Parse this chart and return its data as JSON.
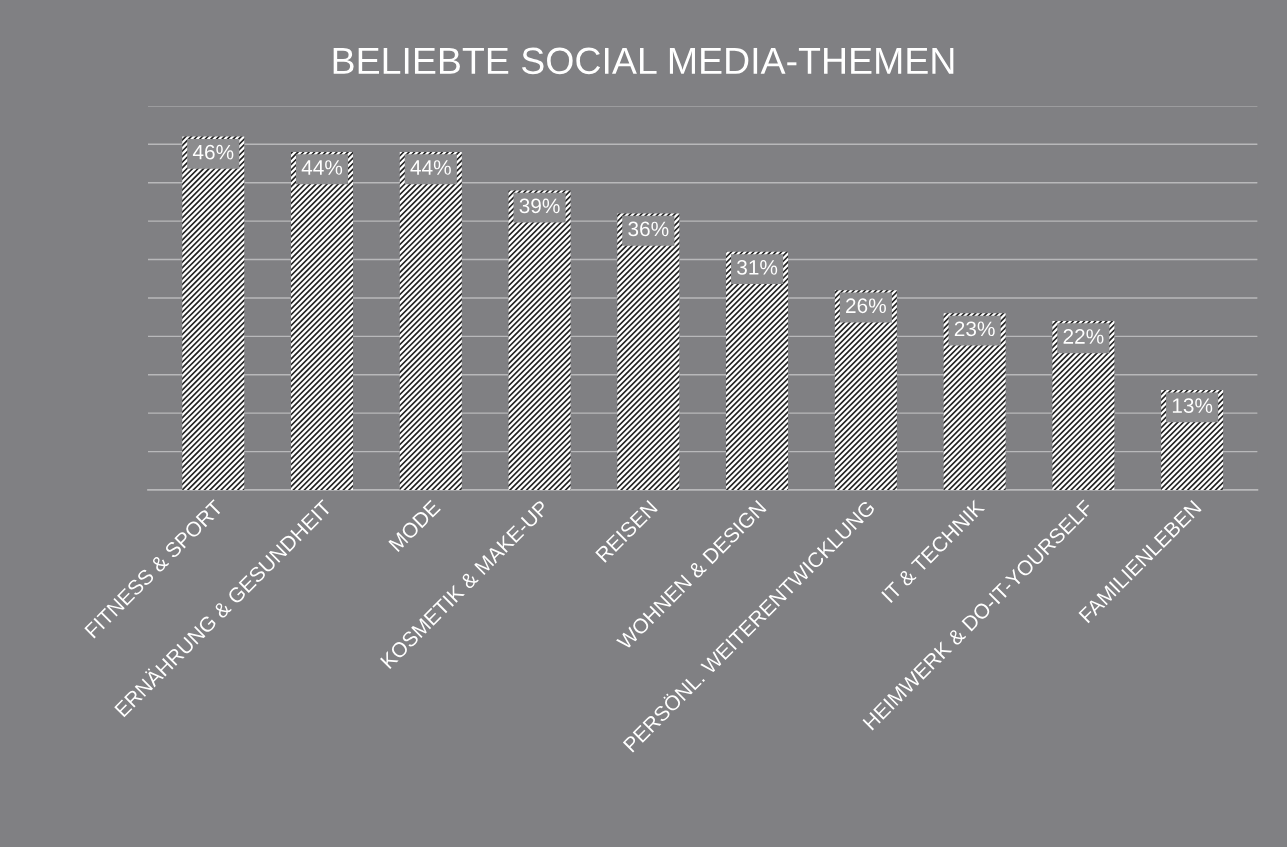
{
  "chart_data": {
    "type": "bar",
    "title": "BELIEBTE SOCIAL MEDIA-THEMEN",
    "categories": [
      "FITNESS & SPORT",
      "ERNÄHRUNG & GESUNDHEIT",
      "MODE",
      "KOSMETIK & MAKE-UP",
      "REISEN",
      "WOHNEN & DESIGN",
      "PERSÖNL. WEITERENTWICKLUNG",
      "IT & TECHNIK",
      "HEIMWERK & DO-IT-YOURSELF",
      "FAMILIENLEBEN"
    ],
    "values": [
      46,
      44,
      44,
      39,
      36,
      31,
      26,
      23,
      22,
      13
    ],
    "value_labels": [
      "46%",
      "44%",
      "44%",
      "39%",
      "36%",
      "31%",
      "26%",
      "23%",
      "22%",
      "13%"
    ],
    "color": "#ffffff",
    "ylim": [
      0,
      50
    ],
    "yticks": [
      {
        "value": 0,
        "label": null
      },
      {
        "value": 5,
        "label": null
      },
      {
        "value": 10,
        "label": null
      },
      {
        "value": 15,
        "label": null
      },
      {
        "value": 20,
        "label": null
      },
      {
        "value": 25,
        "label": null
      },
      {
        "value": 30,
        "label": null
      },
      {
        "value": 35,
        "label": null
      },
      {
        "value": 40,
        "label": null
      },
      {
        "value": 45,
        "label": null
      },
      {
        "value": 50,
        "label": null
      }
    ],
    "tick_labels": "x",
    "grid": "y",
    "legend": false
  }
}
